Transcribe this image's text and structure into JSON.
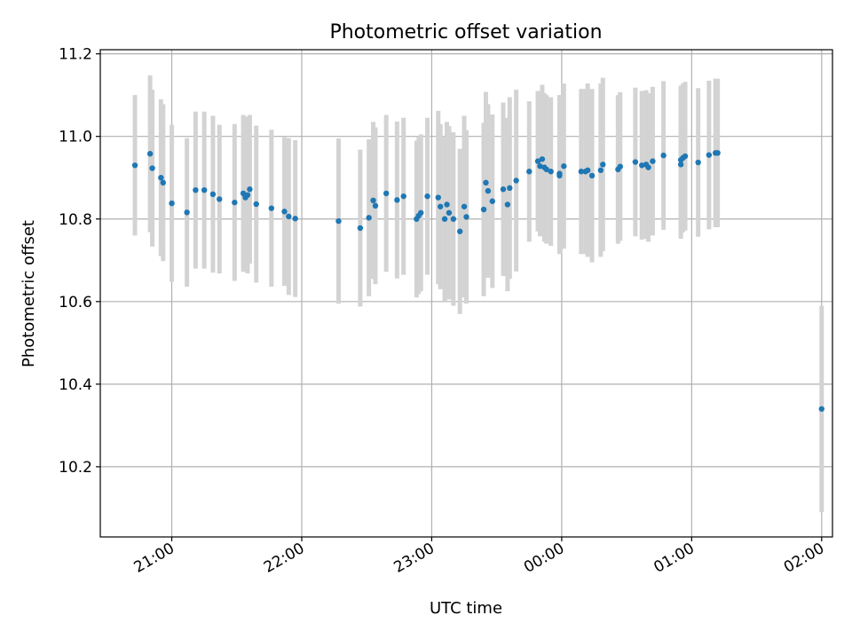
{
  "chart_data": {
    "type": "scatter",
    "title": "Photometric offset variation",
    "xlabel": "UTC time",
    "ylabel": "Photometric offset",
    "x_ticks": [
      "21:00",
      "22:00",
      "23:00",
      "00:00",
      "01:00",
      "02:00"
    ],
    "y_ticks": [
      "10.2",
      "10.4",
      "10.6",
      "10.8",
      "11.0",
      "11.2"
    ],
    "xlim": [
      "20:27",
      "02:05"
    ],
    "ylim": [
      10.03,
      11.21
    ],
    "grid": true,
    "colors": {
      "point": "#1f77b4",
      "errorbar": "#d3d3d3"
    },
    "series": [
      {
        "x": [
          "20:43",
          "20:50",
          "20:51",
          "20:55",
          "20:56",
          "21:00",
          "21:07",
          "21:11",
          "21:15",
          "21:19",
          "21:22",
          "21:29",
          "21:33",
          "21:34",
          "21:35",
          "21:36",
          "21:39",
          "21:46",
          "21:52",
          "21:54",
          "21:57",
          "22:17",
          "22:27",
          "22:31",
          "22:33",
          "22:34",
          "22:39",
          "22:44",
          "22:47",
          "22:53",
          "22:54",
          "22:55",
          "22:58",
          "23:03",
          "23:04",
          "23:06",
          "23:07",
          "23:08",
          "23:10",
          "23:13",
          "23:15",
          "23:16",
          "23:24",
          "23:25",
          "23:26",
          "23:28",
          "23:33",
          "23:35",
          "23:36",
          "23:39",
          "23:45",
          "23:49",
          "23:50",
          "23:51",
          "23:52",
          "23:53",
          "23:55",
          "23:59",
          "23:59",
          "00:01",
          "00:09",
          "00:11",
          "00:12",
          "00:14",
          "00:18",
          "00:19",
          "00:26",
          "00:27",
          "00:34",
          "00:37",
          "00:39",
          "00:40",
          "00:42",
          "00:47",
          "00:55",
          "00:55",
          "00:56",
          "00:57",
          "01:03",
          "01:08",
          "01:11",
          "01:12",
          "02:00"
        ],
        "y": [
          10.93,
          10.958,
          10.923,
          10.9,
          10.888,
          10.838,
          10.816,
          10.87,
          10.87,
          10.86,
          10.848,
          10.84,
          10.862,
          10.852,
          10.858,
          10.872,
          10.836,
          10.826,
          10.818,
          10.806,
          10.801,
          10.795,
          10.778,
          10.803,
          10.845,
          10.832,
          10.862,
          10.846,
          10.855,
          10.8,
          10.808,
          10.815,
          10.855,
          10.852,
          10.83,
          10.8,
          10.835,
          10.815,
          10.8,
          10.77,
          10.83,
          10.805,
          10.823,
          10.888,
          10.868,
          10.843,
          10.872,
          10.835,
          10.875,
          10.893,
          10.915,
          10.94,
          10.928,
          10.945,
          10.925,
          10.92,
          10.915,
          10.905,
          10.91,
          10.928,
          10.915,
          10.915,
          10.918,
          10.905,
          10.918,
          10.932,
          10.92,
          10.927,
          10.938,
          10.93,
          10.932,
          10.925,
          10.94,
          10.954,
          10.943,
          10.932,
          10.948,
          10.952,
          10.937,
          10.955,
          10.96,
          10.96,
          10.34
        ],
        "err": [
          0.17,
          0.19,
          0.19,
          0.19,
          0.19,
          0.19,
          0.18,
          0.19,
          0.19,
          0.19,
          0.18,
          0.19,
          0.19,
          0.18,
          0.19,
          0.18,
          0.19,
          0.19,
          0.18,
          0.19,
          0.19,
          0.2,
          0.19,
          0.19,
          0.19,
          0.19,
          0.19,
          0.19,
          0.19,
          0.19,
          0.19,
          0.19,
          0.19,
          0.21,
          0.2,
          0.2,
          0.2,
          0.21,
          0.21,
          0.2,
          0.22,
          0.21,
          0.21,
          0.22,
          0.21,
          0.21,
          0.21,
          0.21,
          0.22,
          0.22,
          0.17,
          0.17,
          0.17,
          0.18,
          0.18,
          0.18,
          0.18,
          0.19,
          0.19,
          0.2,
          0.2,
          0.2,
          0.21,
          0.21,
          0.21,
          0.21,
          0.18,
          0.18,
          0.18,
          0.18,
          0.18,
          0.18,
          0.18,
          0.18,
          0.18,
          0.18,
          0.18,
          0.18,
          0.18,
          0.18,
          0.18,
          0.18,
          0.25
        ]
      }
    ]
  }
}
